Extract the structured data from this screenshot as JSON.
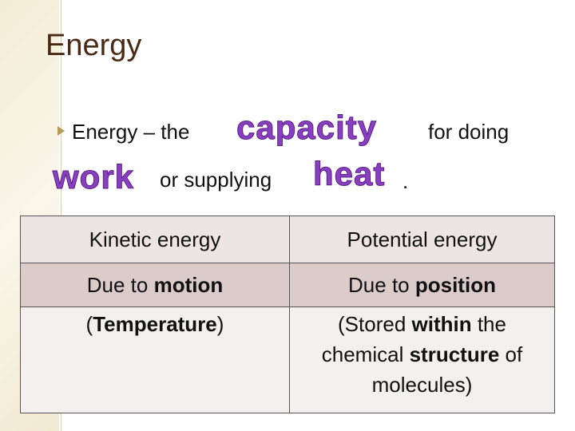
{
  "title": "Energy",
  "definition": {
    "lead": "Energy – the",
    "word1": "capacity",
    "middle": "for doing",
    "word2": "work",
    "connector": "or supplying",
    "word3": "heat",
    "end": "."
  },
  "table": {
    "rows": [
      [
        [
          {
            "text": "Kinetic energy",
            "bold": false
          }
        ],
        [
          {
            "text": "Potential energy",
            "bold": false
          }
        ]
      ],
      [
        [
          {
            "text": "Due to ",
            "bold": false
          },
          {
            "text": "motion",
            "bold": true
          }
        ],
        [
          {
            "text": "Due to ",
            "bold": false
          },
          {
            "text": "position",
            "bold": true
          }
        ]
      ],
      [
        [
          {
            "text": "(",
            "bold": false
          },
          {
            "text": "Temperature",
            "bold": true
          },
          {
            "text": ")",
            "bold": false
          }
        ],
        [
          {
            "text": "(Stored ",
            "bold": false
          },
          {
            "text": "within",
            "bold": true
          },
          {
            "text": " the chemical ",
            "bold": false
          },
          {
            "text": "structure",
            "bold": true
          },
          {
            "text": " of molecules)",
            "bold": false
          }
        ]
      ]
    ]
  }
}
